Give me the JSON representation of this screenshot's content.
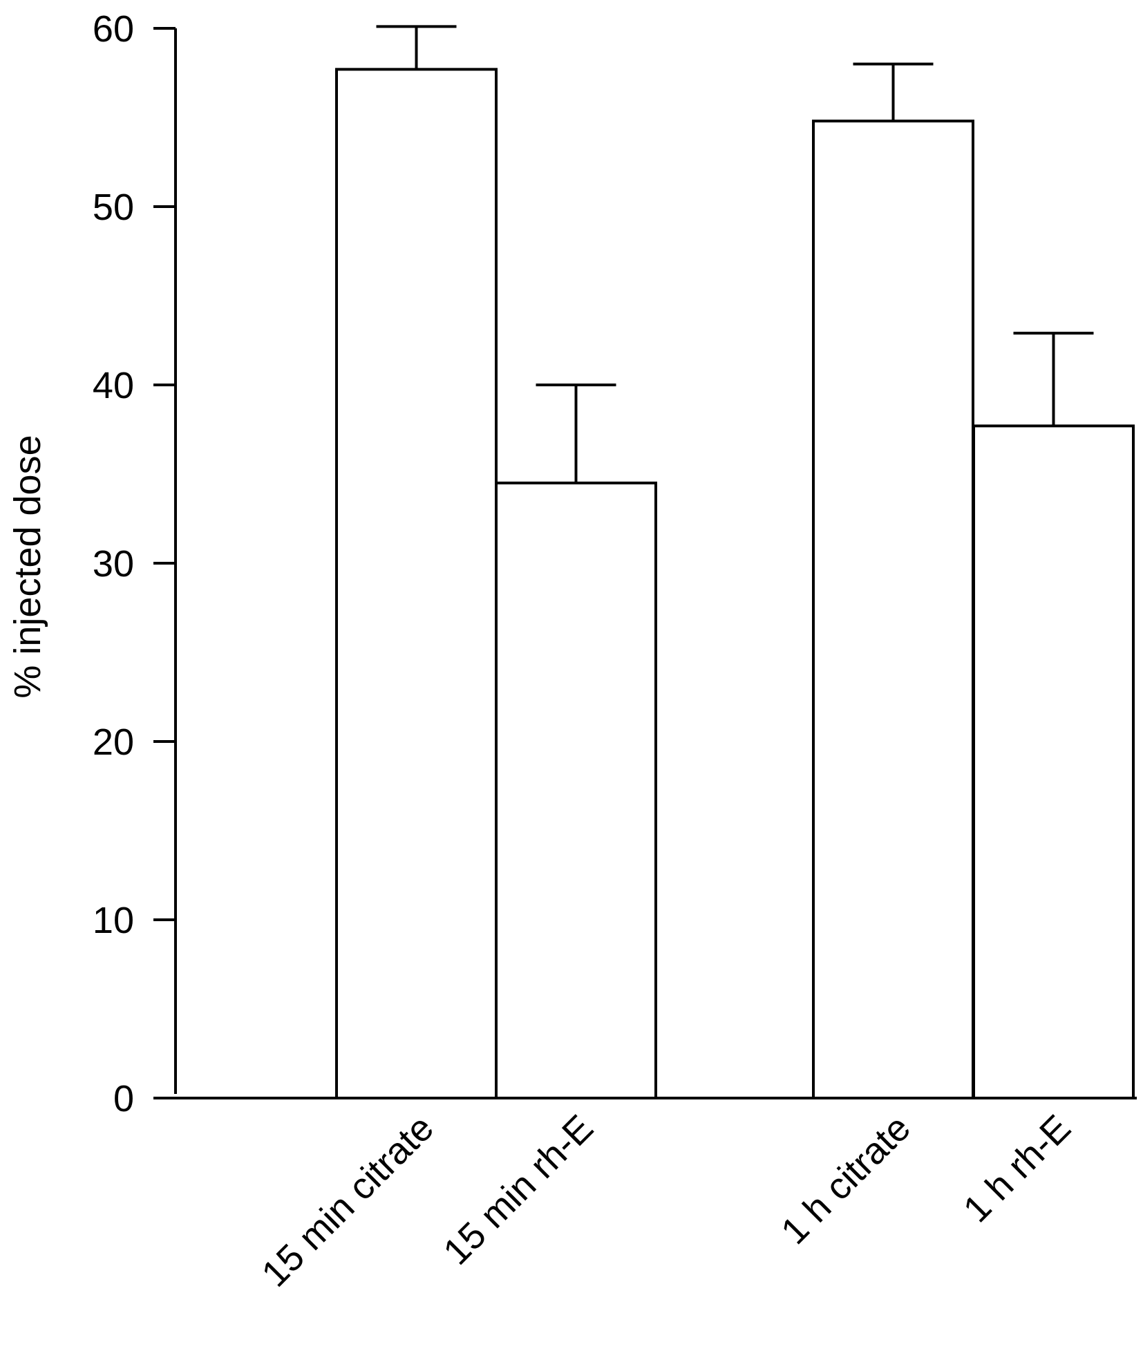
{
  "chart_data": {
    "type": "bar",
    "title": "",
    "xlabel": "",
    "ylabel": "% injected dose",
    "ylim": [
      0,
      60
    ],
    "yticks": [
      0,
      10,
      20,
      30,
      40,
      50,
      60
    ],
    "grid": false,
    "legend": "none",
    "categories": [
      "15 min citrate",
      "15 min rh-E",
      "1 h citrate",
      "1 h rh-E"
    ],
    "values": [
      57.7,
      34.5,
      54.8,
      37.7
    ],
    "errors": [
      2.4,
      5.5,
      3.2,
      5.2
    ],
    "error_bars": "upper",
    "colors": {
      "bar_fill": "#ffffff",
      "stroke": "#000000"
    }
  }
}
